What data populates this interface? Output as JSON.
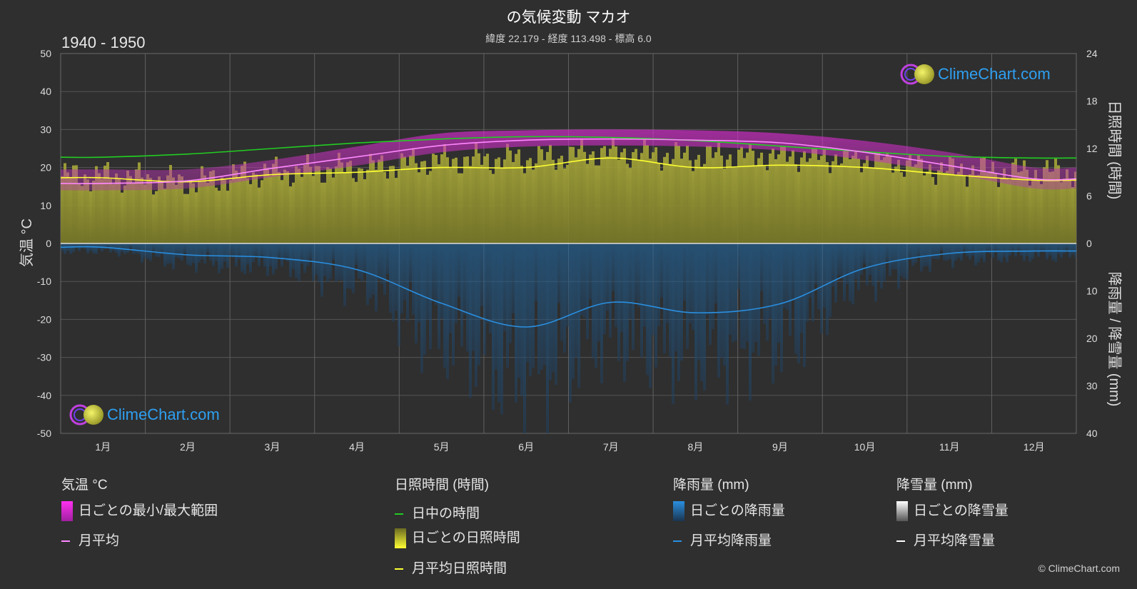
{
  "header": {
    "title": "の気候変動 マカオ",
    "subtitle": "緯度 22.179 - 経度 113.498 - 標高 6.0",
    "period": "1940 - 1950"
  },
  "brand": {
    "logo_text": "ClimeChart.com",
    "copyright": "© ClimeChart.com"
  },
  "colors": {
    "background": "#2f2f2f",
    "grid": "#5a5a5a",
    "temp_range": "#e020d8",
    "temp_mean": "#ff88ff",
    "daylight": "#22cc22",
    "sunshine_bar": "#8a8a2e",
    "sunshine_mean": "#ffff33",
    "rain_bar": "#1e5a8c",
    "rain_mean": "#2a8fe0",
    "snow_mean": "#ffffff",
    "logo": "#2f9ff0"
  },
  "chart_data": {
    "type": "area",
    "x_categories": [
      "1月",
      "2月",
      "3月",
      "4月",
      "5月",
      "6月",
      "7月",
      "8月",
      "9月",
      "10月",
      "11月",
      "12月"
    ],
    "axes": {
      "left": {
        "label": "気温 °C",
        "range": [
          -50,
          50
        ],
        "ticks": [
          50,
          40,
          30,
          20,
          10,
          0,
          -10,
          -20,
          -30,
          -40,
          -50
        ]
      },
      "right_top": {
        "label": "日照時間 (時間)",
        "range": [
          0,
          24
        ],
        "ticks": [
          24,
          18,
          12,
          6,
          0
        ]
      },
      "right_bottom": {
        "label": "降雨量 / 降雪量 (mm)",
        "range": [
          0,
          40
        ],
        "ticks": [
          10,
          20,
          30,
          40
        ]
      }
    },
    "grid": true,
    "series": [
      {
        "name": "日ごとの最小/最大範囲",
        "kind": "band",
        "unit": "°C",
        "min": [
          14.0,
          14.5,
          17.5,
          20.5,
          24.0,
          25.5,
          25.8,
          25.5,
          24.5,
          22.0,
          18.5,
          14.5
        ],
        "max": [
          19.5,
          19.5,
          22.0,
          25.5,
          29.0,
          29.8,
          30.0,
          29.8,
          29.0,
          27.0,
          24.0,
          20.0
        ]
      },
      {
        "name": "月平均",
        "kind": "line",
        "unit": "°C",
        "values": [
          15.8,
          16.5,
          19.8,
          22.8,
          25.8,
          27.2,
          27.5,
          27.2,
          26.5,
          24.0,
          20.5,
          17.0
        ]
      },
      {
        "name": "日中の時間",
        "kind": "line",
        "unit": "時間",
        "values": [
          10.9,
          11.3,
          12.0,
          12.7,
          13.2,
          13.5,
          13.4,
          13.0,
          12.3,
          11.6,
          11.0,
          10.8
        ]
      },
      {
        "name": "日ごとの日照時間",
        "kind": "bars",
        "unit": "時間",
        "values": [
          7.0,
          6.3,
          7.5,
          8.0,
          9.0,
          9.2,
          10.0,
          9.5,
          9.6,
          9.3,
          7.8,
          7.5
        ]
      },
      {
        "name": "月平均日照時間",
        "kind": "line",
        "unit": "時間",
        "values": [
          8.3,
          7.8,
          8.7,
          9.0,
          9.6,
          9.6,
          10.8,
          9.6,
          9.9,
          9.6,
          8.7,
          8.0
        ]
      },
      {
        "name": "日ごとの降雨量",
        "kind": "bars",
        "unit": "mm",
        "values": [
          1.0,
          2.5,
          3.0,
          5.5,
          12.5,
          17.5,
          12.3,
          14.5,
          12.8,
          5.2,
          2.1,
          1.7
        ]
      },
      {
        "name": "月平均降雨量",
        "kind": "line",
        "unit": "mm",
        "values": [
          0.8,
          2.4,
          3.0,
          5.5,
          12.6,
          17.6,
          12.4,
          14.6,
          12.7,
          5.2,
          2.1,
          1.6
        ]
      },
      {
        "name": "日ごとの降雪量",
        "kind": "bars",
        "unit": "mm",
        "values": [
          0,
          0,
          0,
          0,
          0,
          0,
          0,
          0,
          0,
          0,
          0,
          0
        ]
      },
      {
        "name": "月平均降雪量",
        "kind": "line",
        "unit": "mm",
        "values": [
          0,
          0,
          0,
          0,
          0,
          0,
          0,
          0,
          0,
          0,
          0,
          0
        ]
      }
    ]
  },
  "legend": {
    "temp": {
      "heading": "気温 °C",
      "range": "日ごとの最小/最大範囲",
      "mean": "月平均"
    },
    "sun": {
      "heading": "日照時間 (時間)",
      "daylight": "日中の時間",
      "daily": "日ごとの日照時間",
      "mean": "月平均日照時間"
    },
    "rain": {
      "heading": "降雨量 (mm)",
      "daily": "日ごとの降雨量",
      "mean": "月平均降雨量"
    },
    "snow": {
      "heading": "降雪量 (mm)",
      "daily": "日ごとの降雪量",
      "mean": "月平均降雪量"
    }
  }
}
